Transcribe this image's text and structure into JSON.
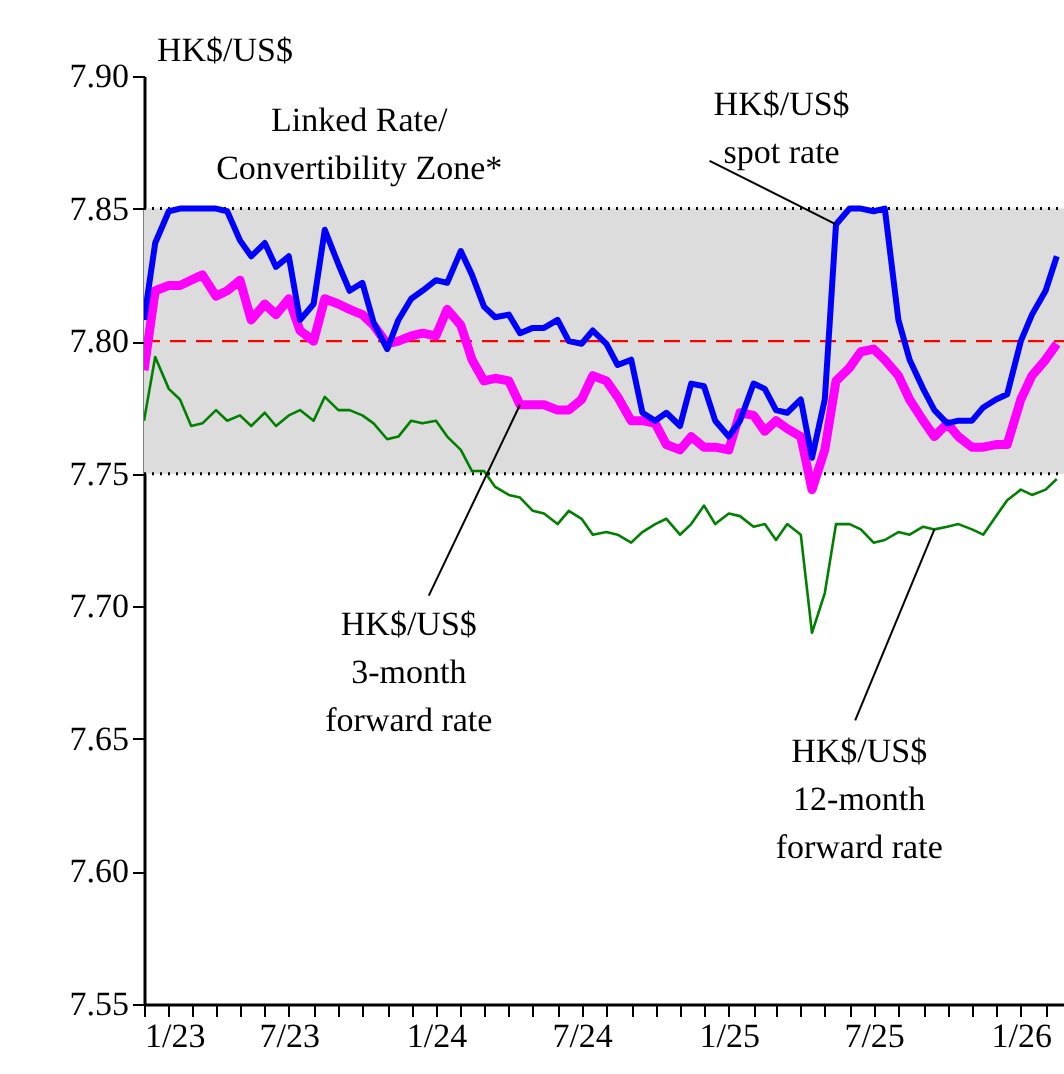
{
  "chart_data": {
    "type": "line",
    "ylabel": "HK$/US$",
    "x": [
      "2023-01-01",
      "2023-01-15",
      "2023-02-01",
      "2023-02-15",
      "2023-03-01",
      "2023-03-15",
      "2023-04-01",
      "2023-04-15",
      "2023-05-01",
      "2023-05-15",
      "2023-06-01",
      "2023-06-15",
      "2023-07-01",
      "2023-07-15",
      "2023-08-01",
      "2023-08-15",
      "2023-09-01",
      "2023-09-15",
      "2023-10-01",
      "2023-10-15",
      "2023-11-01",
      "2023-11-15",
      "2023-12-01",
      "2023-12-15",
      "2024-01-01",
      "2024-01-15",
      "2024-02-01",
      "2024-02-15",
      "2024-03-01",
      "2024-03-15",
      "2024-04-01",
      "2024-04-15",
      "2024-05-01",
      "2024-05-15",
      "2024-06-01",
      "2024-06-15",
      "2024-07-01",
      "2024-07-15",
      "2024-08-01",
      "2024-08-15",
      "2024-09-01",
      "2024-09-15",
      "2024-10-01",
      "2024-10-15",
      "2024-11-01",
      "2024-11-15",
      "2024-12-01",
      "2024-12-15",
      "2025-01-01",
      "2025-01-15",
      "2025-02-01",
      "2025-02-15",
      "2025-03-01",
      "2025-03-15",
      "2025-04-01",
      "2025-04-15",
      "2025-05-01",
      "2025-05-15",
      "2025-06-01",
      "2025-06-15",
      "2025-07-01",
      "2025-07-15",
      "2025-08-01",
      "2025-08-15",
      "2025-09-01",
      "2025-09-15",
      "2025-10-01",
      "2025-10-15",
      "2025-11-01",
      "2025-11-15",
      "2025-12-01",
      "2025-12-15",
      "2026-01-01",
      "2026-01-15",
      "2026-02-01",
      "2026-02-15"
    ],
    "series": [
      {
        "name": "HK$/US$\nspot rate",
        "color": "#0000ff",
        "values": [
          7.808,
          7.837,
          7.849,
          7.85,
          7.85,
          7.85,
          7.85,
          7.849,
          7.838,
          7.832,
          7.837,
          7.828,
          7.832,
          7.808,
          7.814,
          7.842,
          7.829,
          7.819,
          7.822,
          7.807,
          7.797,
          7.808,
          7.816,
          7.819,
          7.823,
          7.822,
          7.834,
          7.825,
          7.813,
          7.809,
          7.81,
          7.803,
          7.805,
          7.805,
          7.808,
          7.8,
          7.799,
          7.804,
          7.799,
          7.791,
          7.793,
          7.773,
          7.77,
          7.773,
          7.768,
          7.784,
          7.783,
          7.77,
          7.764,
          7.77,
          7.784,
          7.782,
          7.774,
          7.773,
          7.778,
          7.756,
          7.778,
          7.844,
          7.85,
          7.85,
          7.849,
          7.85,
          7.808,
          7.793,
          7.782,
          7.774,
          7.769,
          7.77,
          7.77,
          7.775,
          7.778,
          7.78,
          7.8,
          7.81,
          7.819,
          7.832
        ]
      },
      {
        "name": "HK$/US$\n3-month\nforward rate",
        "color": "#ff00ff",
        "values": [
          7.789,
          7.819,
          7.821,
          7.821,
          7.823,
          7.825,
          7.817,
          7.819,
          7.823,
          7.808,
          7.814,
          7.81,
          7.816,
          7.804,
          7.8,
          7.816,
          7.814,
          7.812,
          7.81,
          7.806,
          7.799,
          7.8,
          7.802,
          7.803,
          7.802,
          7.812,
          7.806,
          7.793,
          7.785,
          7.786,
          7.785,
          7.776,
          7.776,
          7.776,
          7.774,
          7.774,
          7.778,
          7.787,
          7.785,
          7.779,
          7.77,
          7.77,
          7.769,
          7.761,
          7.759,
          7.764,
          7.76,
          7.76,
          7.759,
          7.773,
          7.772,
          7.766,
          7.77,
          7.767,
          7.764,
          7.744,
          7.759,
          7.785,
          7.79,
          7.796,
          7.797,
          7.793,
          7.787,
          7.778,
          7.77,
          7.764,
          7.769,
          7.764,
          7.76,
          7.76,
          7.761,
          7.761,
          7.778,
          7.787,
          7.793,
          7.799
        ]
      },
      {
        "name": "HK$/US$\n12-month\nforward rate",
        "color": "#008000",
        "values": [
          7.77,
          7.794,
          7.782,
          7.778,
          7.768,
          7.769,
          7.774,
          7.77,
          7.772,
          7.768,
          7.773,
          7.768,
          7.772,
          7.774,
          7.77,
          7.779,
          7.774,
          7.774,
          7.772,
          7.769,
          7.763,
          7.764,
          7.77,
          7.769,
          7.77,
          7.764,
          7.759,
          7.751,
          7.751,
          7.745,
          7.742,
          7.741,
          7.736,
          7.735,
          7.731,
          7.736,
          7.733,
          7.727,
          7.728,
          7.727,
          7.724,
          7.728,
          7.731,
          7.733,
          7.727,
          7.731,
          7.738,
          7.731,
          7.735,
          7.734,
          7.73,
          7.731,
          7.725,
          7.731,
          7.727,
          7.69,
          7.705,
          7.731,
          7.731,
          7.729,
          7.724,
          7.725,
          7.728,
          7.727,
          7.73,
          7.729,
          7.73,
          7.731,
          7.729,
          7.727,
          7.734,
          7.74,
          7.744,
          7.742,
          7.744,
          7.748
        ]
      }
    ],
    "xlim": [
      "2023-01-01",
      "2026-02-24"
    ],
    "xticks": [
      {
        "value": "2023-01-01",
        "label": "1/23"
      },
      {
        "value": "2023-02-01",
        "label": null
      },
      {
        "value": "2023-03-01",
        "label": null
      },
      {
        "value": "2023-04-01",
        "label": null
      },
      {
        "value": "2023-05-01",
        "label": null
      },
      {
        "value": "2023-06-01",
        "label": null
      },
      {
        "value": "2023-07-01",
        "label": "7/23"
      },
      {
        "value": "2023-08-01",
        "label": null
      },
      {
        "value": "2023-09-01",
        "label": null
      },
      {
        "value": "2023-10-01",
        "label": null
      },
      {
        "value": "2023-11-01",
        "label": null
      },
      {
        "value": "2023-12-01",
        "label": null
      },
      {
        "value": "2024-01-01",
        "label": "1/24"
      },
      {
        "value": "2024-02-01",
        "label": null
      },
      {
        "value": "2024-03-01",
        "label": null
      },
      {
        "value": "2024-04-01",
        "label": null
      },
      {
        "value": "2024-05-01",
        "label": null
      },
      {
        "value": "2024-06-01",
        "label": null
      },
      {
        "value": "2024-07-01",
        "label": "7/24"
      },
      {
        "value": "2024-08-01",
        "label": null
      },
      {
        "value": "2024-09-01",
        "label": null
      },
      {
        "value": "2024-10-01",
        "label": null
      },
      {
        "value": "2024-11-01",
        "label": null
      },
      {
        "value": "2024-12-01",
        "label": null
      },
      {
        "value": "2025-01-01",
        "label": "1/25"
      },
      {
        "value": "2025-02-01",
        "label": null
      },
      {
        "value": "2025-03-01",
        "label": null
      },
      {
        "value": "2025-04-01",
        "label": null
      },
      {
        "value": "2025-05-01",
        "label": null
      },
      {
        "value": "2025-06-01",
        "label": null
      },
      {
        "value": "2025-07-01",
        "label": "7/25"
      },
      {
        "value": "2025-08-01",
        "label": null
      },
      {
        "value": "2025-09-01",
        "label": null
      },
      {
        "value": "2025-10-01",
        "label": null
      },
      {
        "value": "2025-11-01",
        "label": null
      },
      {
        "value": "2025-12-01",
        "label": null
      },
      {
        "value": "2026-01-01",
        "label": "1/26"
      },
      {
        "value": "2026-02-01",
        "label": null
      }
    ],
    "ylim": [
      7.55,
      7.9
    ],
    "yticks": [
      7.55,
      {
        "value": 7.6,
        "label": "7.60"
      },
      7.65,
      {
        "value": 7.7,
        "label": "7.70"
      },
      7.75,
      {
        "value": 7.8,
        "label": "7.80"
      },
      7.85,
      {
        "value": 7.9,
        "label": "7.90"
      }
    ],
    "bands": [
      {
        "axis": "y",
        "from": 7.75,
        "to": 7.85,
        "label": "Linked Rate/\nConvertibility Zone*",
        "color": "#dcdcdc"
      }
    ],
    "ref_lines": [
      {
        "axis": "y",
        "value": 7.8,
        "color": "#ff0000",
        "line_style": "dashed"
      }
    ],
    "line_style": "solid",
    "marker": "none"
  }
}
